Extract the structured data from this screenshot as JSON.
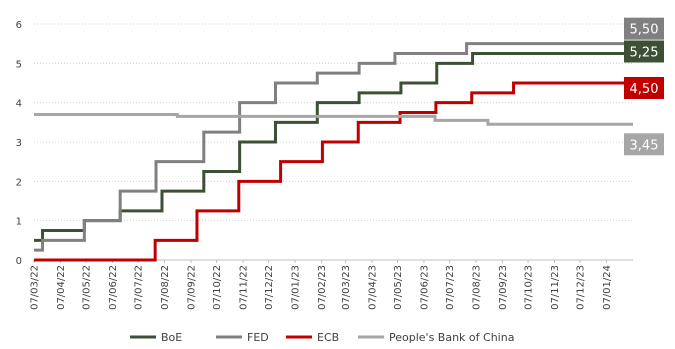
{
  "chart_data": {
    "type": "line",
    "step": true,
    "ylim": [
      0,
      6
    ],
    "yticks": [
      0,
      1,
      2,
      3,
      4,
      5,
      6
    ],
    "xlim": [
      "2022-03-07",
      "2024-02-07"
    ],
    "xticks": [
      "07/03/22",
      "07/04/22",
      "07/05/22",
      "07/06/22",
      "07/07/22",
      "07/08/22",
      "07/09/22",
      "07/10/22",
      "07/11/22",
      "07/12/22",
      "07/01/23",
      "07/02/23",
      "07/03/23",
      "07/04/23",
      "07/05/23",
      "07/06/23",
      "07/07/23",
      "07/08/23",
      "07/09/23",
      "07/10/23",
      "07/11/23",
      "07/12/23",
      "07/01/24"
    ],
    "grid": "horizontal-dotted",
    "legend_position": "bottom",
    "series": [
      {
        "name": "BoE",
        "color": "#3d4f35",
        "end_label": "5,25",
        "points": [
          [
            "2022-03-07",
            0.5
          ],
          [
            "2022-03-17",
            0.75
          ],
          [
            "2022-05-05",
            1.0
          ],
          [
            "2022-06-16",
            1.25
          ],
          [
            "2022-08-04",
            1.75
          ],
          [
            "2022-09-22",
            2.25
          ],
          [
            "2022-11-03",
            3.0
          ],
          [
            "2022-12-15",
            3.5
          ],
          [
            "2023-02-02",
            4.0
          ],
          [
            "2023-03-23",
            4.25
          ],
          [
            "2023-05-11",
            4.5
          ],
          [
            "2023-06-22",
            5.0
          ],
          [
            "2023-08-03",
            5.25
          ],
          [
            "2024-02-07",
            5.25
          ]
        ]
      },
      {
        "name": "FED",
        "color": "#808080",
        "end_label": "5,50",
        "points": [
          [
            "2022-03-07",
            0.25
          ],
          [
            "2022-03-17",
            0.5
          ],
          [
            "2022-05-05",
            1.0
          ],
          [
            "2022-06-16",
            1.75
          ],
          [
            "2022-07-28",
            2.5
          ],
          [
            "2022-09-22",
            3.25
          ],
          [
            "2022-11-03",
            4.0
          ],
          [
            "2022-12-15",
            4.5
          ],
          [
            "2023-02-02",
            4.75
          ],
          [
            "2023-03-23",
            5.0
          ],
          [
            "2023-05-04",
            5.25
          ],
          [
            "2023-07-27",
            5.5
          ],
          [
            "2024-02-07",
            5.5
          ]
        ]
      },
      {
        "name": "ECB",
        "color": "#c00000",
        "end_label": "4,50",
        "points": [
          [
            "2022-03-07",
            0.0
          ],
          [
            "2022-07-27",
            0.5
          ],
          [
            "2022-09-14",
            1.25
          ],
          [
            "2022-11-02",
            2.0
          ],
          [
            "2022-12-21",
            2.5
          ],
          [
            "2023-02-08",
            3.0
          ],
          [
            "2023-03-22",
            3.5
          ],
          [
            "2023-05-10",
            3.75
          ],
          [
            "2023-06-21",
            4.0
          ],
          [
            "2023-08-02",
            4.25
          ],
          [
            "2023-09-20",
            4.5
          ],
          [
            "2024-02-07",
            4.5
          ]
        ]
      },
      {
        "name": "People's Bank of China",
        "color": "#a6a6a6",
        "end_label": "3,45",
        "points": [
          [
            "2022-03-07",
            3.7
          ],
          [
            "2022-08-22",
            3.65
          ],
          [
            "2023-06-20",
            3.55
          ],
          [
            "2023-08-21",
            3.45
          ],
          [
            "2024-02-07",
            3.45
          ]
        ]
      }
    ]
  }
}
